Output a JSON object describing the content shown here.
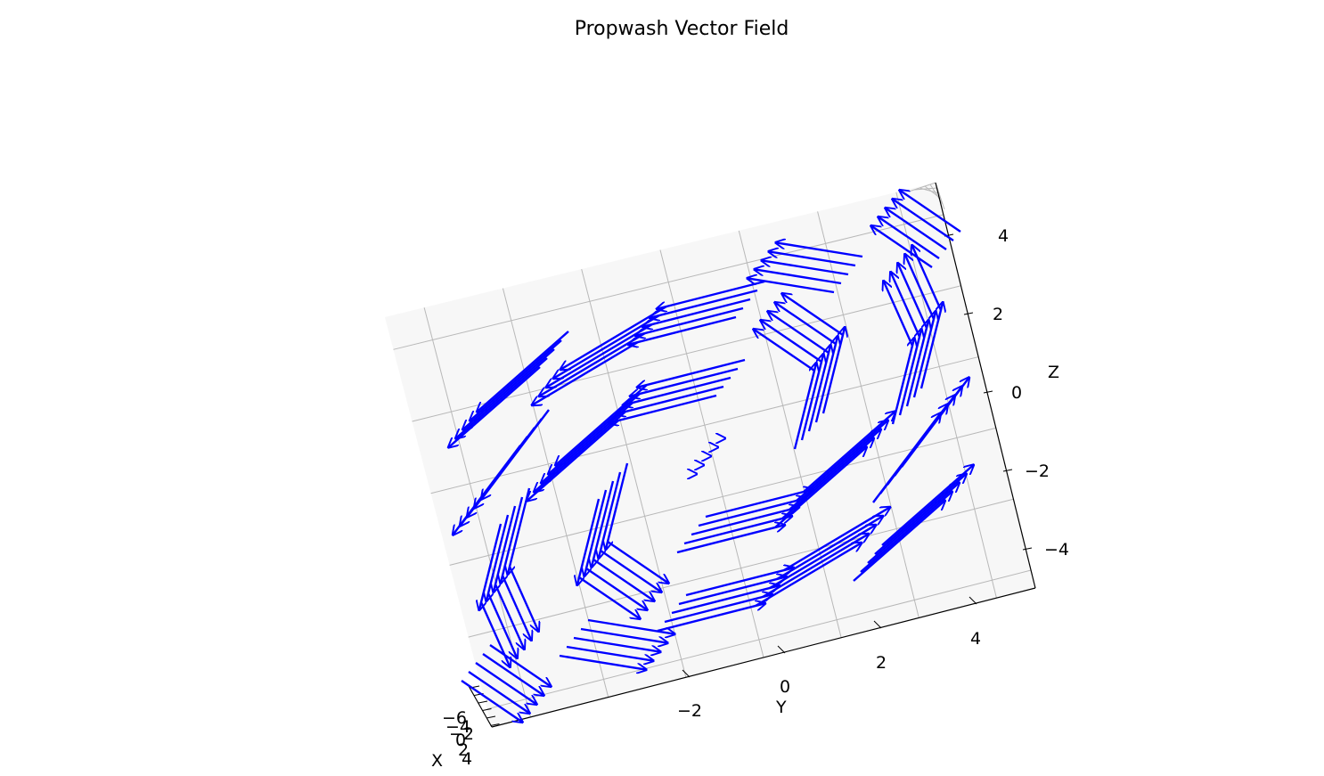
{
  "chart_data": {
    "type": "quiver3d",
    "title": "Propwash Vector Field",
    "xlabel": "X",
    "ylabel": "Y",
    "zlabel": "Z",
    "x_ticks": [
      "−6",
      "−4",
      "−2",
      "0",
      "2",
      "4"
    ],
    "y_ticks": [
      "−2",
      "0",
      "2",
      "4"
    ],
    "z_ticks": [
      "4",
      "2",
      "0",
      "−2",
      "−4"
    ],
    "xlim": [
      -6,
      4
    ],
    "ylim": [
      -5,
      5
    ],
    "zlim": [
      -5,
      5
    ],
    "grid": true,
    "arrow_color": "#0000ff",
    "field": {
      "description_of_field": "swirling rotational flow about the Y axis",
      "x_samples": [
        -4,
        -2,
        0,
        2,
        4
      ],
      "y_samples": [
        -4,
        -2,
        0,
        2,
        4
      ],
      "z_samples": [
        -4,
        -2,
        0,
        2,
        4
      ]
    }
  }
}
